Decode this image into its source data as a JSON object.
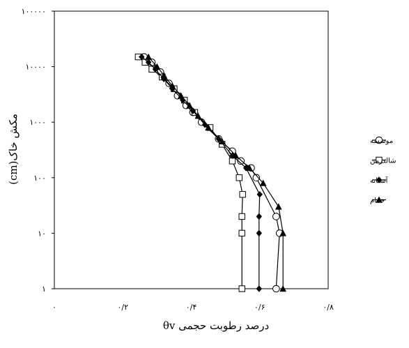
{
  "chart_data": {
    "type": "line",
    "title": "",
    "xlabel": "درصد رطوبت حجمی θv",
    "ylabel": "مکش خاک(cm)",
    "x_tick_labels": [
      "۰",
      "۰/۲",
      "۰/۴",
      "۰/۶",
      "۰/۸"
    ],
    "x_ticks": [
      0,
      0.2,
      0.4,
      0.6,
      0.8
    ],
    "xlim": [
      0,
      0.8
    ],
    "y_tick_labels": [
      "۱",
      "۱۰",
      "۱۰۰",
      "۱۰۰۰",
      "۱۰۰۰۰",
      "۱۰۰۰۰۰"
    ],
    "y_ticks": [
      1,
      10,
      100,
      1000,
      10000,
      100000
    ],
    "ylim": [
      1,
      100000
    ],
    "yscale": "log",
    "grid": false,
    "legend_position": "right",
    "series": [
      {
        "name": "موسسه",
        "marker": "circle-open",
        "color": "#000000",
        "points": [
          [
            0.648,
            1
          ],
          [
            0.658,
            10
          ],
          [
            0.648,
            20
          ],
          [
            0.59,
            100
          ],
          [
            0.575,
            150
          ],
          [
            0.545,
            200
          ],
          [
            0.52,
            300
          ],
          [
            0.48,
            500
          ],
          [
            0.43,
            1000
          ],
          [
            0.405,
            1500
          ],
          [
            0.385,
            2000
          ],
          [
            0.36,
            3000
          ],
          [
            0.335,
            5000
          ],
          [
            0.31,
            8000
          ],
          [
            0.285,
            12000
          ],
          [
            0.262,
            15000
          ]
        ]
      },
      {
        "name": "شالدرمن",
        "marker": "square-open",
        "color": "#000000",
        "points": [
          [
            0.548,
            1
          ],
          [
            0.548,
            10
          ],
          [
            0.548,
            20
          ],
          [
            0.55,
            50
          ],
          [
            0.54,
            100
          ],
          [
            0.52,
            200
          ],
          [
            0.49,
            400
          ],
          [
            0.455,
            800
          ],
          [
            0.41,
            1500
          ],
          [
            0.38,
            2500
          ],
          [
            0.35,
            4000
          ],
          [
            0.315,
            6500
          ],
          [
            0.285,
            9000
          ],
          [
            0.265,
            12000
          ],
          [
            0.245,
            15000
          ]
        ]
      },
      {
        "name": "آستانه",
        "marker": "diamond-filled",
        "color": "#000000",
        "points": [
          [
            0.598,
            1
          ],
          [
            0.598,
            10
          ],
          [
            0.598,
            20
          ],
          [
            0.6,
            50
          ],
          [
            0.56,
            150
          ],
          [
            0.52,
            250
          ],
          [
            0.48,
            500
          ],
          [
            0.44,
            900
          ],
          [
            0.405,
            1600
          ],
          [
            0.375,
            2500
          ],
          [
            0.345,
            4000
          ],
          [
            0.32,
            6000
          ],
          [
            0.295,
            9000
          ],
          [
            0.275,
            12000
          ],
          [
            0.255,
            15000
          ]
        ]
      },
      {
        "name": "خمام",
        "marker": "triangle-filled",
        "color": "#000000",
        "points": [
          [
            0.668,
            1
          ],
          [
            0.668,
            10
          ],
          [
            0.655,
            30
          ],
          [
            0.61,
            80
          ],
          [
            0.57,
            150
          ],
          [
            0.53,
            250
          ],
          [
            0.49,
            450
          ],
          [
            0.45,
            800
          ],
          [
            0.42,
            1300
          ],
          [
            0.395,
            2000
          ],
          [
            0.37,
            3000
          ],
          [
            0.345,
            4500
          ],
          [
            0.32,
            7000
          ],
          [
            0.3,
            10000
          ],
          [
            0.275,
            15000
          ]
        ]
      }
    ]
  }
}
